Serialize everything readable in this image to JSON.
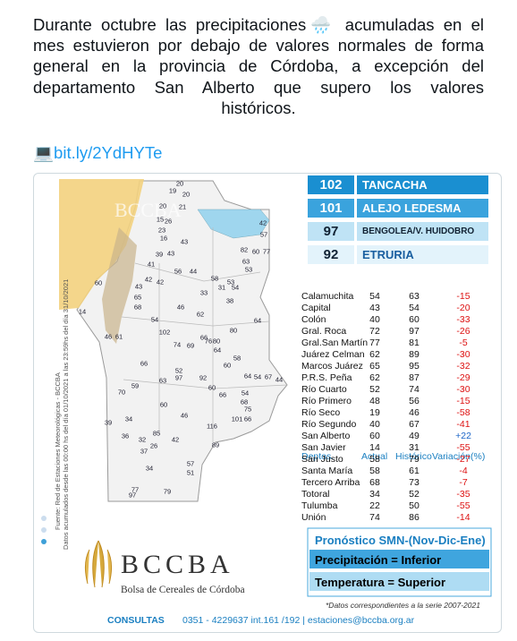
{
  "tweet": {
    "lines": [
      "Durante octubre las precipitaciones🌧️ acumuladas en el",
      "mes estuvieron por debajo de valores normales de forma",
      "general en la provincia de Córdoba, a excepción del",
      "departamento San Alberto que supero los valores",
      "históricos."
    ],
    "link_icon": "💻",
    "link": "bit.ly/2YdHYTe"
  },
  "infographic": {
    "watermark": "BCCBA",
    "side_notes": [
      "Fuente: Red de Estaciones Meteorológicas - BCCBA",
      "Datos acumulados desde las 00:00 hs del día 01/10/2021 a las 23:59hs del día 31/10/2021"
    ],
    "ranking": [
      {
        "value": 102,
        "name": "TANCACHA"
      },
      {
        "value": 101,
        "name": "ALEJO LEDESMA"
      },
      {
        "value": 97,
        "name": "BENGOLEA/V. HUIDOBRO"
      },
      {
        "value": 92,
        "name": "ETRURIA"
      }
    ],
    "map_labels": [
      20,
      19,
      20,
      20,
      21,
      15,
      26,
      23,
      16,
      43,
      39,
      43,
      41,
      60,
      82,
      60,
      77,
      42,
      57,
      63,
      53,
      56,
      44,
      58,
      53,
      31,
      54,
      42,
      43,
      42,
      33,
      38,
      65,
      68,
      46,
      62,
      14,
      54,
      80,
      66,
      64,
      102,
      46,
      61,
      74,
      69,
      76,
      80,
      64,
      58,
      66,
      60,
      52,
      54,
      97,
      92,
      63,
      64,
      67,
      59,
      70,
      60,
      44,
      66,
      54,
      68,
      60,
      75,
      46,
      101,
      66,
      39,
      34,
      116,
      36,
      32,
      85,
      42,
      26,
      37,
      89,
      34,
      57,
      51,
      77,
      97,
      79
    ],
    "table": {
      "header": [
        "Deptos.",
        "Actual",
        "Histórico",
        "Variación(%)"
      ],
      "rows": [
        [
          "Calamuchita",
          54,
          63,
          -15
        ],
        [
          "Capital",
          43,
          54,
          -20
        ],
        [
          "Colón",
          40,
          60,
          -33
        ],
        [
          "Gral. Roca",
          72,
          97,
          -26
        ],
        [
          "Gral.San Martín",
          77,
          81,
          -5
        ],
        [
          "Juárez Celman",
          62,
          89,
          -30
        ],
        [
          "Marcos Juárez",
          65,
          95,
          -32
        ],
        [
          "P.R.S. Peña",
          62,
          87,
          -29
        ],
        [
          "Río Cuarto",
          52,
          74,
          -30
        ],
        [
          "Río Primero",
          48,
          56,
          -15
        ],
        [
          "Río Seco",
          19,
          46,
          -58
        ],
        [
          "Río Segundo",
          40,
          67,
          -41
        ],
        [
          "San Alberto",
          60,
          49,
          "+22"
        ],
        [
          "San Javier",
          14,
          31,
          -55
        ],
        [
          "San Justo",
          58,
          79,
          -27
        ],
        [
          "Santa María",
          58,
          61,
          -4
        ],
        [
          "Tercero Arriba",
          68,
          73,
          -7
        ],
        [
          "Totoral",
          34,
          52,
          -35
        ],
        [
          "Tulumba",
          22,
          50,
          -55
        ],
        [
          "Unión",
          74,
          86,
          -14
        ]
      ]
    },
    "forecast": {
      "title": "Pronóstico SMN-(Nov-Dic-Ene)",
      "precipitation": "Precipitación = Inferior",
      "temperature": "Temperatura = Superior"
    },
    "footnote": "*Datos correspondientes a la serie 2007-2021",
    "logo": {
      "name": "BCCBA",
      "subtitle": "Bolsa de Cereales de Córdoba"
    },
    "contact": {
      "label": "CONSULTAS",
      "text": "0351 - 4229637 int.161 /192 | estaciones@bccba.org.ar"
    }
  }
}
